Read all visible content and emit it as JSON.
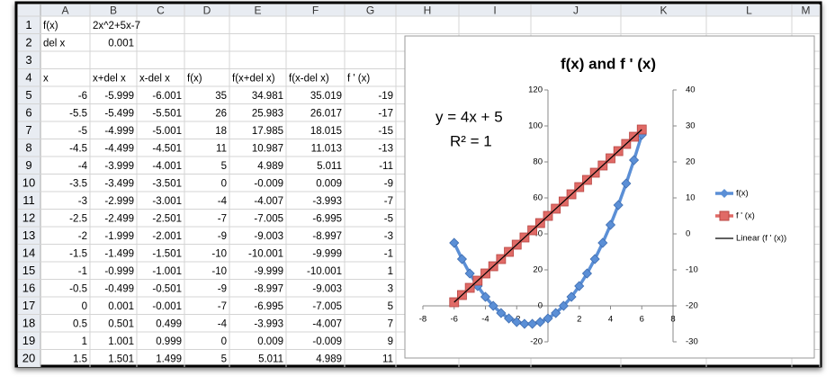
{
  "sheet": {
    "columns": [
      "A",
      "B",
      "C",
      "D",
      "E",
      "F",
      "G",
      "H",
      "I",
      "J",
      "K",
      "L",
      "M"
    ],
    "row_labels": [
      "1",
      "2",
      "3",
      "4",
      "5",
      "6",
      "7",
      "8",
      "9",
      "10",
      "11",
      "12",
      "13",
      "14",
      "15",
      "16",
      "17",
      "18",
      "19",
      "20"
    ],
    "rows": [
      [
        "f(x)",
        "2x^2+5x-7",
        "",
        "",
        "",
        "",
        ""
      ],
      [
        "del x",
        "0.001",
        "",
        "",
        "",
        "",
        ""
      ],
      [
        "",
        "",
        "",
        "",
        "",
        "",
        ""
      ],
      [
        "x",
        "x+del x",
        "x-del x",
        "f(x)",
        "f(x+del x)",
        "f(x-del x)",
        "f ' (x)"
      ],
      [
        "-6",
        "-5.999",
        "-6.001",
        "35",
        "34.981",
        "35.019",
        "-19"
      ],
      [
        "-5.5",
        "-5.499",
        "-5.501",
        "26",
        "25.983",
        "26.017",
        "-17"
      ],
      [
        "-5",
        "-4.999",
        "-5.001",
        "18",
        "17.985",
        "18.015",
        "-15"
      ],
      [
        "-4.5",
        "-4.499",
        "-4.501",
        "11",
        "10.987",
        "11.013",
        "-13"
      ],
      [
        "-4",
        "-3.999",
        "-4.001",
        "5",
        "4.989",
        "5.011",
        "-11"
      ],
      [
        "-3.5",
        "-3.499",
        "-3.501",
        "0",
        "-0.009",
        "0.009",
        "-9"
      ],
      [
        "-3",
        "-2.999",
        "-3.001",
        "-4",
        "-4.007",
        "-3.993",
        "-7"
      ],
      [
        "-2.5",
        "-2.499",
        "-2.501",
        "-7",
        "-7.005",
        "-6.995",
        "-5"
      ],
      [
        "-2",
        "-1.999",
        "-2.001",
        "-9",
        "-9.003",
        "-8.997",
        "-3"
      ],
      [
        "-1.5",
        "-1.499",
        "-1.501",
        "-10",
        "-10.001",
        "-9.999",
        "-1"
      ],
      [
        "-1",
        "-0.999",
        "-1.001",
        "-10",
        "-9.999",
        "-10.001",
        "1"
      ],
      [
        "-0.5",
        "-0.499",
        "-0.501",
        "-9",
        "-8.997",
        "-9.003",
        "3"
      ],
      [
        "0",
        "0.001",
        "-0.001",
        "-7",
        "-6.995",
        "-7.005",
        "5"
      ],
      [
        "0.5",
        "0.501",
        "0.499",
        "-4",
        "-3.993",
        "-4.007",
        "7"
      ],
      [
        "1",
        "1.001",
        "0.999",
        "0",
        "0.009",
        "-0.009",
        "9"
      ],
      [
        "1.5",
        "1.501",
        "1.499",
        "5",
        "5.011",
        "4.989",
        "11"
      ]
    ]
  },
  "chart_data": {
    "type": "line",
    "title": "f(x) and f ' (x)",
    "equation": "y = 4x + 5",
    "r_squared": "R² = 1",
    "x": [
      -6,
      -5.5,
      -5,
      -4.5,
      -4,
      -3.5,
      -3,
      -2.5,
      -2,
      -1.5,
      -1,
      -0.5,
      0,
      0.5,
      1,
      1.5,
      2,
      2.5,
      3,
      3.5,
      4,
      4.5,
      5,
      5.5,
      6
    ],
    "series": [
      {
        "name": "f(x)",
        "color": "#5b8fd6",
        "axis": "y",
        "values": [
          35,
          26,
          18,
          11,
          5,
          0,
          -4,
          -7,
          -9,
          -10,
          -10,
          -9,
          -7,
          -4,
          0,
          5,
          11,
          18,
          26,
          35,
          45,
          56,
          68,
          81,
          95
        ]
      },
      {
        "name": "f ' (x)",
        "color": "#e06a66",
        "axis": "y2",
        "values": [
          -19,
          -17,
          -15,
          -13,
          -11,
          -9,
          -7,
          -5,
          -3,
          -1,
          1,
          3,
          5,
          7,
          9,
          11,
          13,
          15,
          17,
          19,
          21,
          23,
          25,
          27,
          29
        ],
        "trendline": {
          "name": "Linear (f ' (x))",
          "color": "#000000"
        }
      }
    ],
    "xlim": [
      -8,
      8
    ],
    "xticks": [
      -8,
      -6,
      -4,
      -2,
      0,
      2,
      4,
      6,
      8
    ],
    "ylim": [
      -20,
      120
    ],
    "yticks": [
      -20,
      0,
      20,
      40,
      60,
      80,
      100,
      120
    ],
    "y2lim": [
      -30,
      40
    ],
    "y2ticks": [
      -30,
      -20,
      -10,
      0,
      10,
      20,
      30,
      40
    ],
    "legend": "right"
  }
}
